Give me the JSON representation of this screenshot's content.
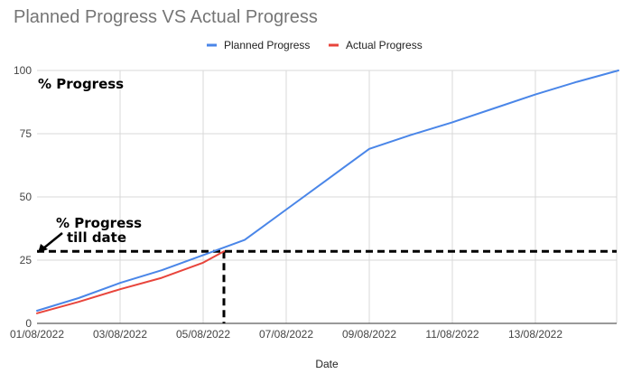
{
  "chart_data": {
    "type": "line",
    "title": "Planned Progress VS Actual Progress",
    "xlabel": "Date",
    "ylabel": "",
    "ylim": [
      0,
      100
    ],
    "yticks": [
      0,
      25,
      50,
      75,
      100
    ],
    "x_tick_labels": [
      "01/08/2022",
      "03/08/2022",
      "05/08/2022",
      "07/08/2022",
      "09/08/2022",
      "11/08/2022",
      "13/08/2022"
    ],
    "grid": true,
    "legend_position": "top",
    "series": [
      {
        "name": "Planned Progress",
        "color": "#4a86e8",
        "points": [
          {
            "x": "01/08/2022",
            "y": 5
          },
          {
            "x": "02/08/2022",
            "y": 10
          },
          {
            "x": "03/08/2022",
            "y": 16
          },
          {
            "x": "04/08/2022",
            "y": 21
          },
          {
            "x": "05/08/2022",
            "y": 27
          },
          {
            "x": "06/08/2022",
            "y": 33
          },
          {
            "x": "07/08/2022",
            "y": 45
          },
          {
            "x": "08/08/2022",
            "y": 57
          },
          {
            "x": "09/08/2022",
            "y": 69
          },
          {
            "x": "10/08/2022",
            "y": 74.5
          },
          {
            "x": "11/08/2022",
            "y": 79.5
          },
          {
            "x": "12/08/2022",
            "y": 85
          },
          {
            "x": "13/08/2022",
            "y": 90.5
          },
          {
            "x": "14/08/2022",
            "y": 95.5
          },
          {
            "x": "15/08/2022",
            "y": 100
          }
        ]
      },
      {
        "name": "Actual Progress",
        "color": "#e8453c",
        "points": [
          {
            "x": "01/08/2022",
            "y": 4
          },
          {
            "x": "02/08/2022",
            "y": 8.5
          },
          {
            "x": "03/08/2022",
            "y": 13.5
          },
          {
            "x": "04/08/2022",
            "y": 18
          },
          {
            "x": "05/08/2022",
            "y": 24
          },
          {
            "x": "05/08/2022 12:00",
            "y": 28.5
          }
        ]
      }
    ],
    "annotations": {
      "y_axis_note": "% Progress",
      "marker_line1": "% Progress",
      "marker_line2": "till date",
      "marker_value": 28.5,
      "marker_date": "05/08/2022 12:00"
    }
  }
}
